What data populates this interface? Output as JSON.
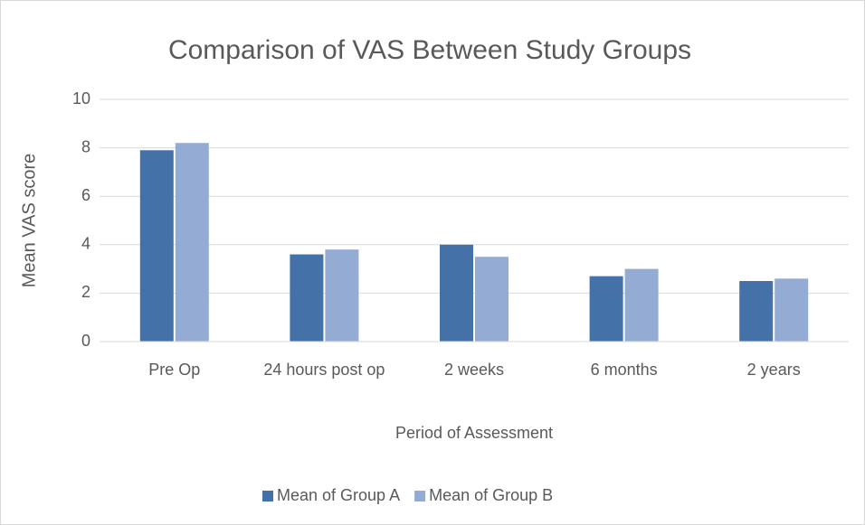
{
  "chart_data": {
    "type": "bar",
    "title": "Comparison of VAS Between Study Groups",
    "x_label": "Period of Assessment",
    "y_label": "Mean VAS score",
    "categories": [
      "Pre Op",
      "24 hours post op",
      "2 weeks",
      "6 months",
      "2 years"
    ],
    "series": [
      {
        "name": "Mean of Group A",
        "color": "#4472a8",
        "values": [
          7.9,
          3.6,
          4.0,
          2.7,
          2.5
        ]
      },
      {
        "name": "Mean of Group B",
        "color": "#94abd4",
        "values": [
          8.2,
          3.8,
          3.5,
          3.0,
          2.6
        ]
      }
    ],
    "ylim": [
      0,
      10
    ],
    "yticks": [
      0,
      2,
      4,
      6,
      8,
      10
    ],
    "grid": true,
    "legend": "bottom"
  }
}
